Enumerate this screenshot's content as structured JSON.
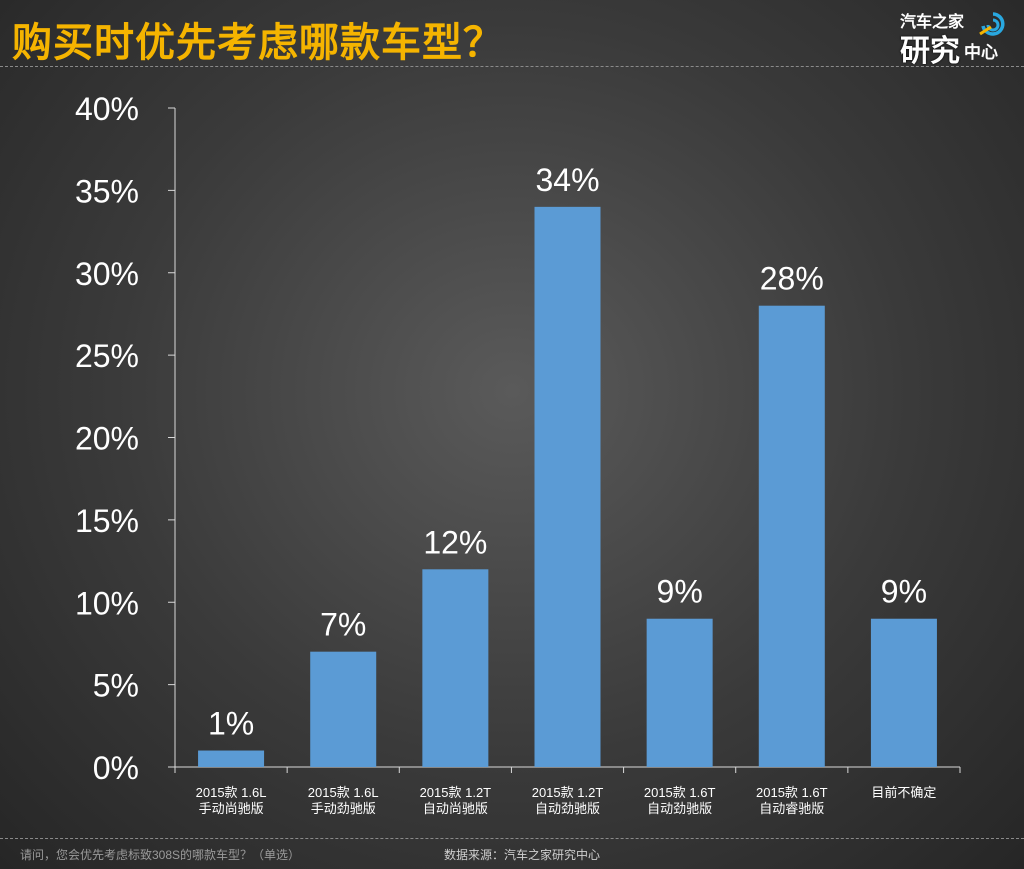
{
  "header": {
    "title": "购买时优先考虑哪款车型？",
    "logo": {
      "line1": "汽车之家",
      "line2": "研究",
      "line3": "中心"
    }
  },
  "footer": {
    "question": "请问，您会优先考虑标致308S的哪款车型？（单选）",
    "source": "数据来源：汽车之家研究中心"
  },
  "colors": {
    "bar": "#5b9bd5",
    "title": "#f5b400",
    "text": "#ffffff"
  },
  "chart_data": {
    "type": "bar",
    "title": "购买时优先考虑哪款车型？",
    "categories": [
      [
        "2015款 1.6L",
        "手动尚驰版"
      ],
      [
        "2015款 1.6L",
        "手动劲驰版"
      ],
      [
        "2015款 1.2T",
        "自动尚驰版"
      ],
      [
        "2015款 1.2T",
        "自动劲驰版"
      ],
      [
        "2015款 1.6T",
        "自动劲驰版"
      ],
      [
        "2015款 1.6T",
        "自动睿驰版"
      ],
      [
        "目前不确定"
      ]
    ],
    "values": [
      1,
      7,
      12,
      34,
      9,
      28,
      9
    ],
    "value_labels": [
      "1%",
      "7%",
      "12%",
      "34%",
      "9%",
      "28%",
      "9%"
    ],
    "ylim": [
      0,
      40
    ],
    "yticks": [
      0,
      5,
      10,
      15,
      20,
      25,
      30,
      35,
      40
    ],
    "ytick_labels": [
      "0%",
      "5%",
      "10%",
      "15%",
      "20%",
      "25%",
      "30%",
      "35%",
      "40%"
    ],
    "xlabel": "",
    "ylabel": "",
    "grid": false
  }
}
